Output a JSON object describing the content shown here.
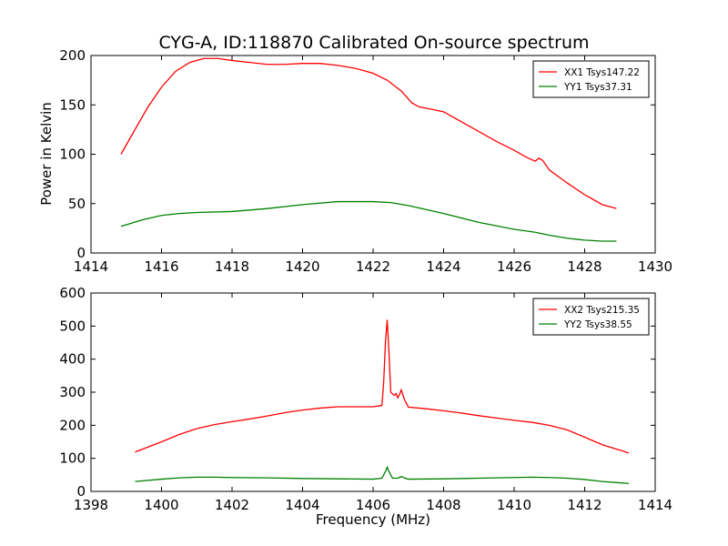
{
  "figure": {
    "title": "CYG-A, ID:118870 Calibrated On-source spectrum",
    "xlabel": "Frequency (MHz)",
    "ylabel": "Power in Kelvin"
  },
  "chart_data": [
    {
      "type": "line",
      "xlim": [
        1414,
        1430
      ],
      "ylim": [
        0,
        200
      ],
      "xticks": [
        1414,
        1416,
        1418,
        1420,
        1422,
        1424,
        1426,
        1428,
        1430
      ],
      "yticks": [
        0,
        50,
        100,
        150,
        200
      ],
      "legend_position": "top-right",
      "grid": false,
      "series": [
        {
          "name": "XX1 Tsys147.22",
          "color": "#ff0000",
          "x": [
            1414.85,
            1415.2,
            1415.6,
            1416.0,
            1416.4,
            1416.8,
            1417.2,
            1417.6,
            1418.0,
            1418.5,
            1419.0,
            1419.5,
            1420.0,
            1420.5,
            1421.0,
            1421.5,
            1422.0,
            1422.4,
            1422.8,
            1423.1,
            1423.3,
            1423.6,
            1424.0,
            1424.5,
            1425.0,
            1425.5,
            1426.0,
            1426.4,
            1426.6,
            1426.7,
            1426.8,
            1427.0,
            1427.5,
            1428.0,
            1428.5,
            1428.9
          ],
          "y": [
            100,
            122,
            147,
            168,
            184,
            193,
            197,
            197,
            195,
            193,
            191,
            191,
            192,
            192,
            190,
            187,
            182,
            175,
            164,
            152,
            148,
            146,
            143,
            133,
            123,
            113,
            104,
            96,
            93,
            96,
            94,
            84,
            71,
            59,
            49,
            45
          ]
        },
        {
          "name": "YY1 Tsys37.31",
          "color": "#008000",
          "x": [
            1414.85,
            1415.5,
            1416.0,
            1416.5,
            1417.0,
            1418.0,
            1419.0,
            1420.0,
            1421.0,
            1421.5,
            1422.0,
            1422.5,
            1423.0,
            1424.0,
            1425.0,
            1426.0,
            1426.6,
            1427.0,
            1427.5,
            1428.0,
            1428.5,
            1428.9
          ],
          "y": [
            27,
            34,
            38,
            40,
            41,
            42,
            45,
            49,
            52,
            52,
            52,
            51,
            48,
            40,
            31,
            24,
            21,
            18,
            15,
            13,
            12,
            12
          ]
        }
      ]
    },
    {
      "type": "line",
      "xlim": [
        1398,
        1414
      ],
      "ylim": [
        0,
        600
      ],
      "xticks": [
        1398,
        1400,
        1402,
        1404,
        1406,
        1408,
        1410,
        1412,
        1414
      ],
      "yticks": [
        0,
        100,
        200,
        300,
        400,
        500,
        600
      ],
      "legend_position": "top-right",
      "grid": false,
      "series": [
        {
          "name": "XX2 Tsys215.35",
          "color": "#ff0000",
          "x": [
            1399.25,
            1400.0,
            1400.5,
            1401.0,
            1401.5,
            1402.0,
            1402.5,
            1403.0,
            1403.5,
            1404.0,
            1404.5,
            1405.0,
            1405.5,
            1406.0,
            1406.25,
            1406.3,
            1406.35,
            1406.4,
            1406.45,
            1406.5,
            1406.6,
            1406.65,
            1406.7,
            1406.75,
            1406.8,
            1406.85,
            1406.9,
            1407.0,
            1407.5,
            1408.0,
            1408.5,
            1409.0,
            1409.5,
            1410.0,
            1410.5,
            1411.0,
            1411.5,
            1412.0,
            1412.5,
            1413.0,
            1413.25
          ],
          "y": [
            119,
            150,
            172,
            190,
            202,
            211,
            219,
            228,
            238,
            246,
            252,
            256,
            256,
            256,
            260,
            330,
            450,
            519,
            420,
            300,
            290,
            296,
            283,
            293,
            307,
            290,
            275,
            255,
            250,
            244,
            237,
            229,
            222,
            215,
            209,
            200,
            186,
            164,
            141,
            125,
            116
          ]
        },
        {
          "name": "YY2 Tsys38.55",
          "color": "#008000",
          "x": [
            1399.25,
            1400.0,
            1400.5,
            1401.0,
            1401.5,
            1402.0,
            1403.0,
            1404.0,
            1405.0,
            1406.0,
            1406.25,
            1406.35,
            1406.4,
            1406.45,
            1406.55,
            1406.7,
            1406.8,
            1406.9,
            1407.0,
            1408.0,
            1409.0,
            1410.0,
            1410.5,
            1411.0,
            1411.5,
            1412.0,
            1412.5,
            1413.0,
            1413.25
          ],
          "y": [
            30,
            37,
            41,
            43,
            43,
            42,
            41,
            39,
            38,
            37,
            40,
            60,
            73,
            60,
            40,
            40,
            45,
            40,
            37,
            38,
            40,
            42,
            43,
            42,
            40,
            36,
            30,
            26,
            24
          ]
        }
      ]
    }
  ]
}
